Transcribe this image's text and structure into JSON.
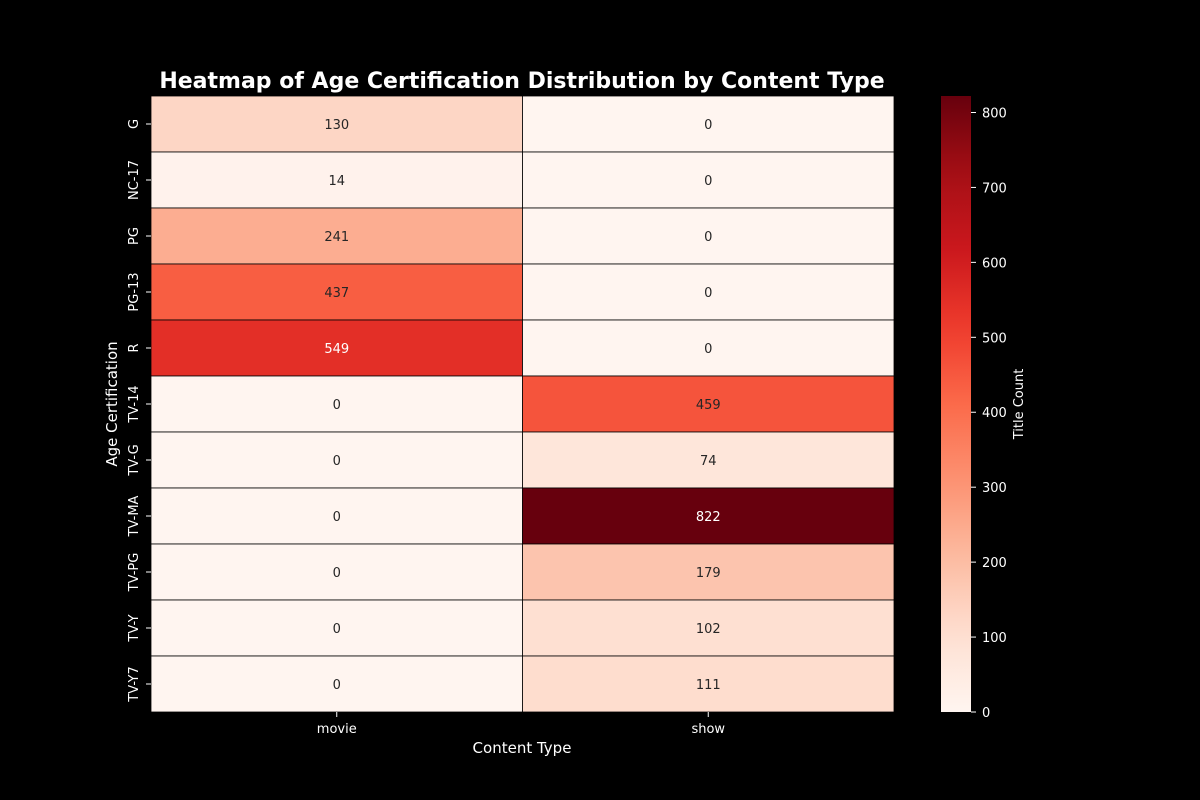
{
  "chart_data": {
    "type": "heatmap",
    "title": "Heatmap of Age Certification Distribution by Content Type",
    "xlabel": "Content Type",
    "ylabel": "Age Certification",
    "columns": [
      "movie",
      "show"
    ],
    "rows": [
      "G",
      "NC-17",
      "PG",
      "PG-13",
      "R",
      "TV-14",
      "TV-G",
      "TV-MA",
      "TV-PG",
      "TV-Y",
      "TV-Y7"
    ],
    "values": [
      [
        130,
        0
      ],
      [
        14,
        0
      ],
      [
        241,
        0
      ],
      [
        437,
        0
      ],
      [
        549,
        0
      ],
      [
        0,
        459
      ],
      [
        0,
        74
      ],
      [
        0,
        822
      ],
      [
        0,
        179
      ],
      [
        0,
        102
      ],
      [
        0,
        111
      ]
    ],
    "colorbar": {
      "label": "Title Count",
      "min": 0,
      "max": 822,
      "ticks": [
        0,
        100,
        200,
        300,
        400,
        500,
        600,
        700,
        800
      ],
      "colormap": "Reds"
    },
    "colors": {
      "background": "#000000",
      "text": "#ffffff",
      "cell_border": "#000000"
    }
  }
}
